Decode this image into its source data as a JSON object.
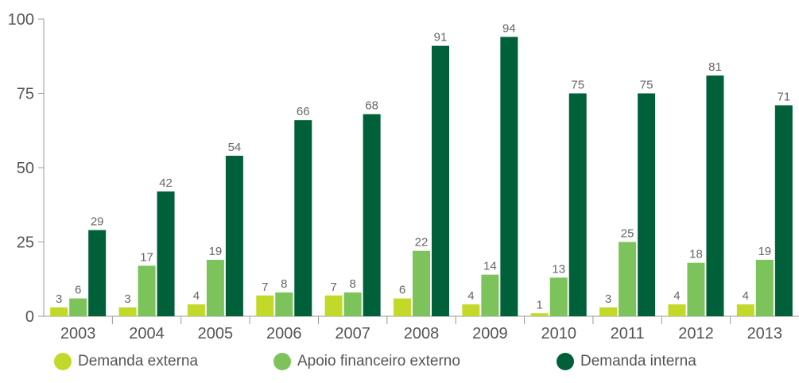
{
  "chart_data": {
    "type": "bar",
    "title": "",
    "xlabel": "",
    "ylabel": "",
    "ylim": [
      0,
      100
    ],
    "yticks": [
      0,
      25,
      50,
      75,
      100
    ],
    "grid": false,
    "legend_position": "bottom",
    "categories": [
      "2003",
      "2004",
      "2005",
      "2006",
      "2007",
      "2008",
      "2009",
      "2010",
      "2011",
      "2012",
      "2013"
    ],
    "series": [
      {
        "name": "Demanda externa",
        "color": "#c3d92a",
        "values": [
          3,
          3,
          4,
          7,
          7,
          6,
          4,
          1,
          3,
          4,
          4
        ]
      },
      {
        "name": "Apoio financeiro externo",
        "color": "#7dc35b",
        "values": [
          6,
          17,
          19,
          8,
          8,
          22,
          14,
          13,
          25,
          18,
          19
        ]
      },
      {
        "name": "Demanda interna",
        "color": "#00603a",
        "values": [
          29,
          42,
          54,
          66,
          68,
          91,
          94,
          75,
          75,
          81,
          71
        ]
      }
    ]
  }
}
